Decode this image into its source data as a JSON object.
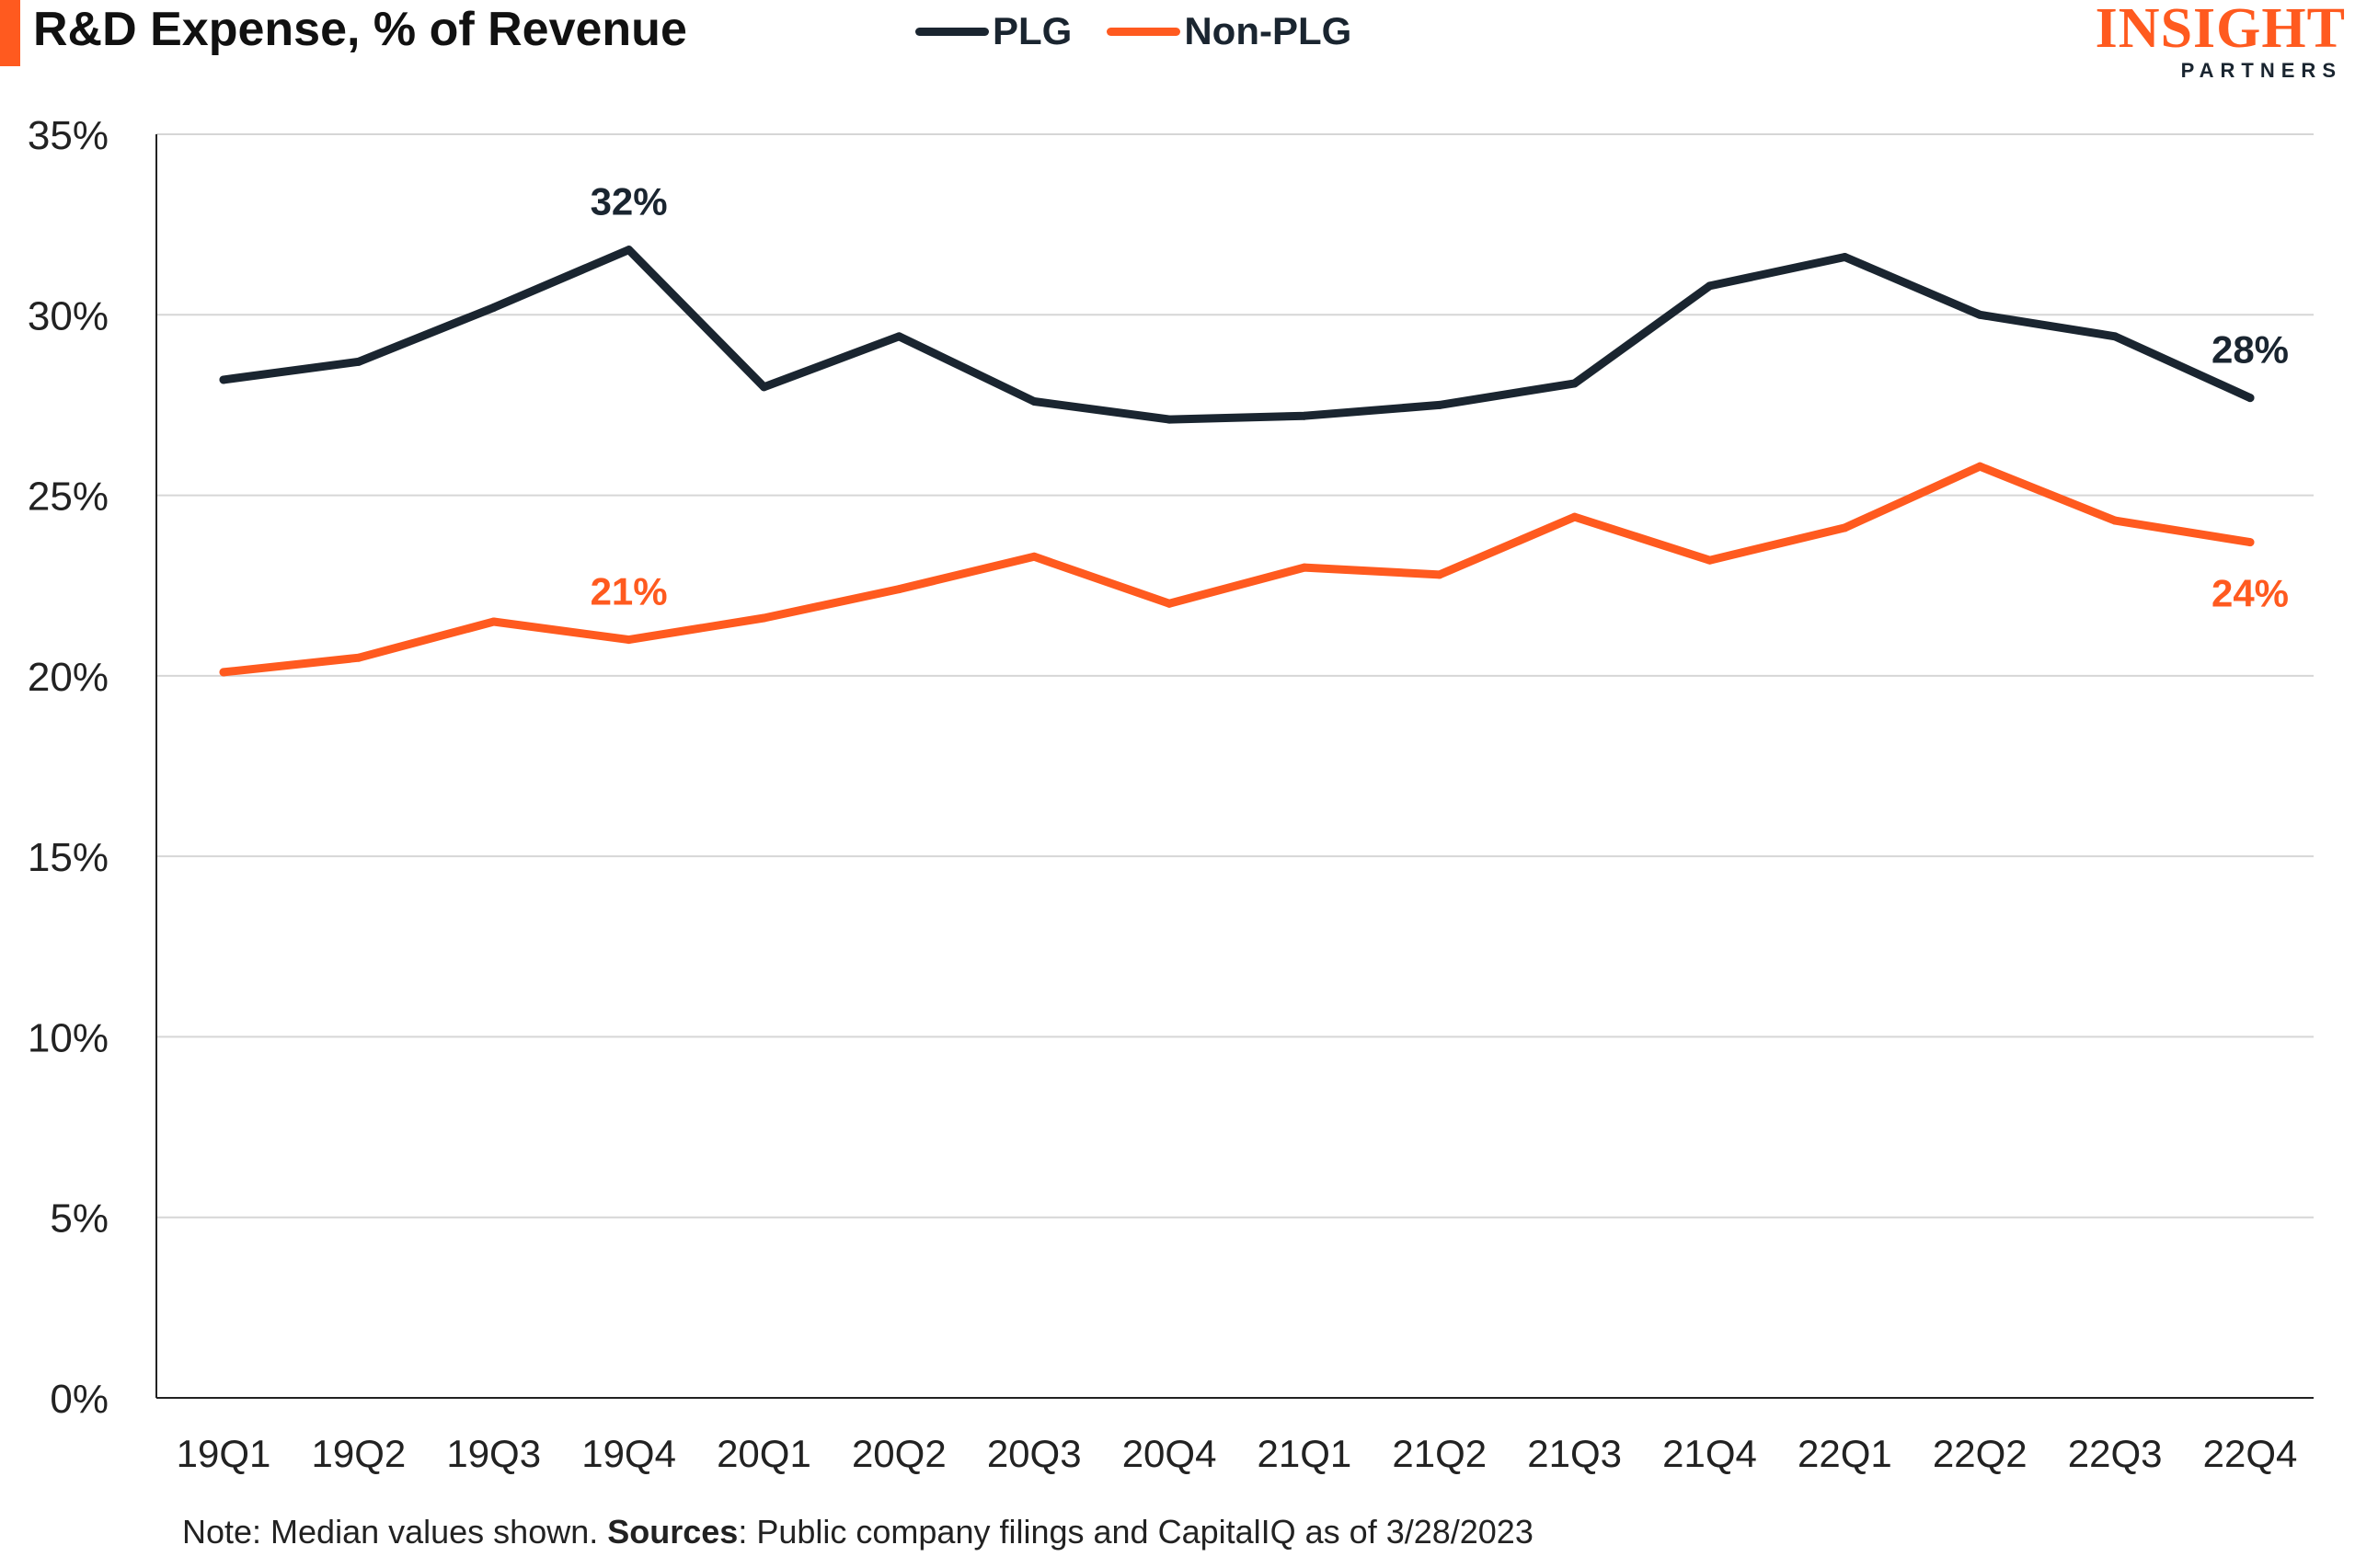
{
  "header": {
    "title": "R&D Expense, % of Revenue"
  },
  "logo": {
    "main": "INSIGHT",
    "sub": "PARTNERS"
  },
  "colors": {
    "plg": "#1a2530",
    "non_plg": "#ff5a1f",
    "accent": "#ff5a1f",
    "grid": "#d6d6d6"
  },
  "note": {
    "prefix": "Note: Median values shown.",
    "sources_label": "Sources",
    "sources_text": ": Public company filings and CapitalIQ as of 3/28/2023"
  },
  "chart_data": {
    "type": "line",
    "title": "R&D Expense, % of Revenue",
    "xlabel": "",
    "ylabel": "",
    "ylim": [
      0,
      35
    ],
    "yticks": [
      "0%",
      "5%",
      "10%",
      "15%",
      "20%",
      "25%",
      "30%",
      "35%"
    ],
    "ytick_values": [
      0,
      5,
      10,
      15,
      20,
      25,
      30,
      35
    ],
    "grid": true,
    "legend_position": "top",
    "categories": [
      "19Q1",
      "19Q2",
      "19Q3",
      "19Q4",
      "20Q1",
      "20Q2",
      "20Q3",
      "20Q4",
      "21Q1",
      "21Q2",
      "21Q3",
      "21Q4",
      "22Q1",
      "22Q2",
      "22Q3",
      "22Q4"
    ],
    "series": [
      {
        "name": "PLG",
        "color": "#1a2530",
        "values": [
          28.2,
          28.7,
          30.2,
          31.8,
          28.0,
          29.4,
          27.6,
          27.1,
          27.2,
          27.5,
          28.1,
          30.8,
          31.6,
          30.0,
          29.4,
          27.7
        ]
      },
      {
        "name": "Non-PLG",
        "color": "#ff5a1f",
        "values": [
          20.1,
          20.5,
          21.5,
          21.0,
          21.6,
          22.4,
          23.3,
          22.0,
          23.0,
          22.8,
          24.4,
          23.2,
          24.1,
          25.8,
          24.3,
          23.7
        ]
      }
    ],
    "annotations": [
      {
        "series": 0,
        "index": 3,
        "text": "32%",
        "placement": "above"
      },
      {
        "series": 0,
        "index": 15,
        "text": "28%",
        "placement": "above"
      },
      {
        "series": 1,
        "index": 3,
        "text": "21%",
        "placement": "above"
      },
      {
        "series": 1,
        "index": 15,
        "text": "24%",
        "placement": "below"
      }
    ]
  }
}
